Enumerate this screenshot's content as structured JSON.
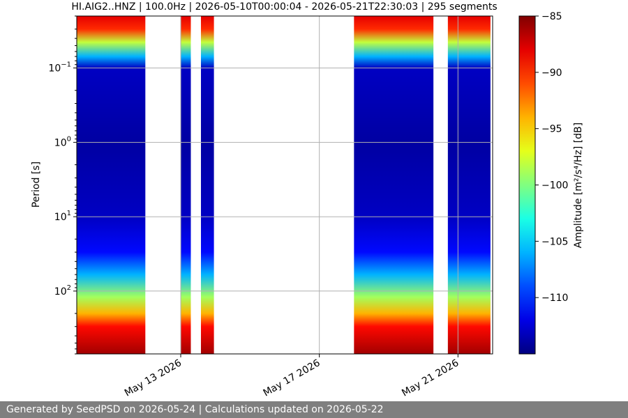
{
  "chart_data": {
    "type": "heatmap",
    "title": "HI.AIG2..HNZ | 100.0Hz | 2026-05-10T00:00:04 - 2026-05-21T22:30:03 | 295 segments",
    "ylabel": "Period [s]",
    "colorbar_label": "Amplitude [m²/s⁴/Hz] [dB]",
    "x_range": [
      "2026-05-10",
      "2026-05-22"
    ],
    "x_ticks": [
      {
        "date": "2026-05-13",
        "label": "May 13 2026"
      },
      {
        "date": "2026-05-17",
        "label": "May 17 2026"
      },
      {
        "date": "2026-05-21",
        "label": "May 21 2026"
      }
    ],
    "y_scale": "log",
    "y_inverted": true,
    "y_range": [
      0.02,
      700
    ],
    "y_ticks": [
      {
        "value": 0.1,
        "base": "10",
        "exp": "−1"
      },
      {
        "value": 1,
        "base": "10",
        "exp": "0"
      },
      {
        "value": 10,
        "base": "10",
        "exp": "1"
      },
      {
        "value": 100,
        "base": "10",
        "exp": "2"
      }
    ],
    "colorbar_range": [
      -115,
      -85
    ],
    "colorbar_ticks": [
      {
        "value": -85,
        "label": "−85"
      },
      {
        "value": -90,
        "label": "−90"
      },
      {
        "value": -95,
        "label": "−95"
      },
      {
        "value": -100,
        "label": "−100"
      },
      {
        "value": -105,
        "label": "−105"
      },
      {
        "value": -110,
        "label": "−110"
      }
    ],
    "colormap": "jet",
    "grid": true,
    "data_segments": [
      {
        "start": "2026-05-10T00:00:04",
        "end": "2026-05-11T23:30:00"
      },
      {
        "start": "2026-05-13T00:00:00",
        "end": "2026-05-13T07:00:00"
      },
      {
        "start": "2026-05-13T14:00:00",
        "end": "2026-05-13T23:00:00"
      },
      {
        "start": "2026-05-18T00:00:00",
        "end": "2026-05-20T07:00:00"
      },
      {
        "start": "2026-05-20T17:00:00",
        "end": "2026-05-21T22:30:03"
      }
    ],
    "psd_profile": [
      {
        "period": 0.02,
        "amplitude_db": -88
      },
      {
        "period": 0.03,
        "amplitude_db": -90
      },
      {
        "period": 0.045,
        "amplitude_db": -98
      },
      {
        "period": 0.07,
        "amplitude_db": -106
      },
      {
        "period": 0.1,
        "amplitude_db": -113
      },
      {
        "period": 1,
        "amplitude_db": -114
      },
      {
        "period": 10,
        "amplitude_db": -113
      },
      {
        "period": 30,
        "amplitude_db": -111
      },
      {
        "period": 60,
        "amplitude_db": -106
      },
      {
        "period": 120,
        "amplitude_db": -99
      },
      {
        "period": 200,
        "amplitude_db": -94
      },
      {
        "period": 300,
        "amplitude_db": -89
      },
      {
        "period": 700,
        "amplitude_db": -86
      }
    ]
  },
  "footer": {
    "text": "Generated by SeedPSD on 2026-05-24 | Calculations updated on 2026-05-22"
  }
}
